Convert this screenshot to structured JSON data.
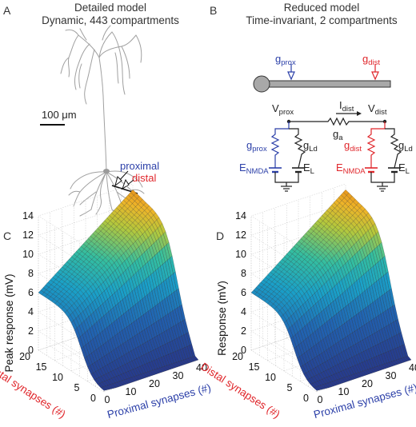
{
  "panel_a": {
    "letter": "A",
    "title_line1": "Detailed model",
    "title_line2": "Dynamic, 443 compartments",
    "scale_bar": "100 μm",
    "proximal_label": "proximal",
    "distal_label": "distal"
  },
  "panel_b": {
    "letter": "B",
    "title_line1": "Reduced model",
    "title_line2": "Time-invariant, 2 compartments",
    "g_prox": "g",
    "g_prox_sub": "prox",
    "g_dist": "g",
    "g_dist_sub": "dist",
    "v_prox": "V",
    "v_prox_sub": "prox",
    "v_dist": "V",
    "v_dist_sub": "dist",
    "i_dist": "I",
    "i_dist_sub": "dist",
    "g_a": "g",
    "g_a_sub": "a",
    "g_ld": "g",
    "g_ld_sub": "Ld",
    "e_nmda": "E",
    "e_nmda_sub": "NMDA",
    "e_l": "E",
    "e_l_sub": "L"
  },
  "panel_c": {
    "letter": "C",
    "zlabel": "Peak response (mV)",
    "xlabel": "Proximal synapses (#)",
    "ylabel": "Distal synapses (#)"
  },
  "panel_d": {
    "letter": "D",
    "zlabel": "Response (mV)",
    "xlabel": "Proximal synapses (#)",
    "ylabel": "Distal synapses (#)"
  },
  "colors": {
    "proximal": "#2b3fa8",
    "distal": "#e0262b",
    "neuron": "#a0a0a0"
  },
  "chart_data": [
    {
      "type": "surface",
      "panel": "C",
      "zlabel": "Peak response (mV)",
      "xlabel": "Proximal synapses (#)",
      "ylabel": "Distal synapses (#)",
      "x_ticks": [
        0,
        10,
        20,
        30,
        40
      ],
      "y_ticks": [
        0,
        5,
        10,
        15,
        20
      ],
      "z_ticks": [
        0,
        2,
        4,
        6,
        8,
        10,
        12,
        14
      ],
      "xlim": [
        0,
        40
      ],
      "ylim": [
        0,
        20
      ],
      "zlim": [
        0,
        14
      ],
      "grid": true,
      "surface_samples": [
        {
          "proximal": 0,
          "distal": 0,
          "value": 0
        },
        {
          "proximal": 40,
          "distal": 0,
          "value": 5.5
        },
        {
          "proximal": 0,
          "distal": 20,
          "value": 5.0
        },
        {
          "proximal": 40,
          "distal": 20,
          "value": 13.5
        }
      ]
    },
    {
      "type": "surface",
      "panel": "D",
      "zlabel": "Response (mV)",
      "xlabel": "Proximal synapses (#)",
      "ylabel": "Distal synapses (#)",
      "x_ticks": [
        0,
        10,
        20,
        30,
        40
      ],
      "y_ticks": [
        0,
        5,
        10,
        15,
        20
      ],
      "z_ticks": [
        0,
        2,
        4,
        6,
        8,
        10,
        12,
        14
      ],
      "xlim": [
        0,
        40
      ],
      "ylim": [
        0,
        20
      ],
      "zlim": [
        0,
        14
      ],
      "grid": true,
      "surface_samples": [
        {
          "proximal": 0,
          "distal": 0,
          "value": 0
        },
        {
          "proximal": 40,
          "distal": 0,
          "value": 5.0
        },
        {
          "proximal": 0,
          "distal": 20,
          "value": 5.0
        },
        {
          "proximal": 40,
          "distal": 20,
          "value": 13.0
        }
      ]
    }
  ]
}
